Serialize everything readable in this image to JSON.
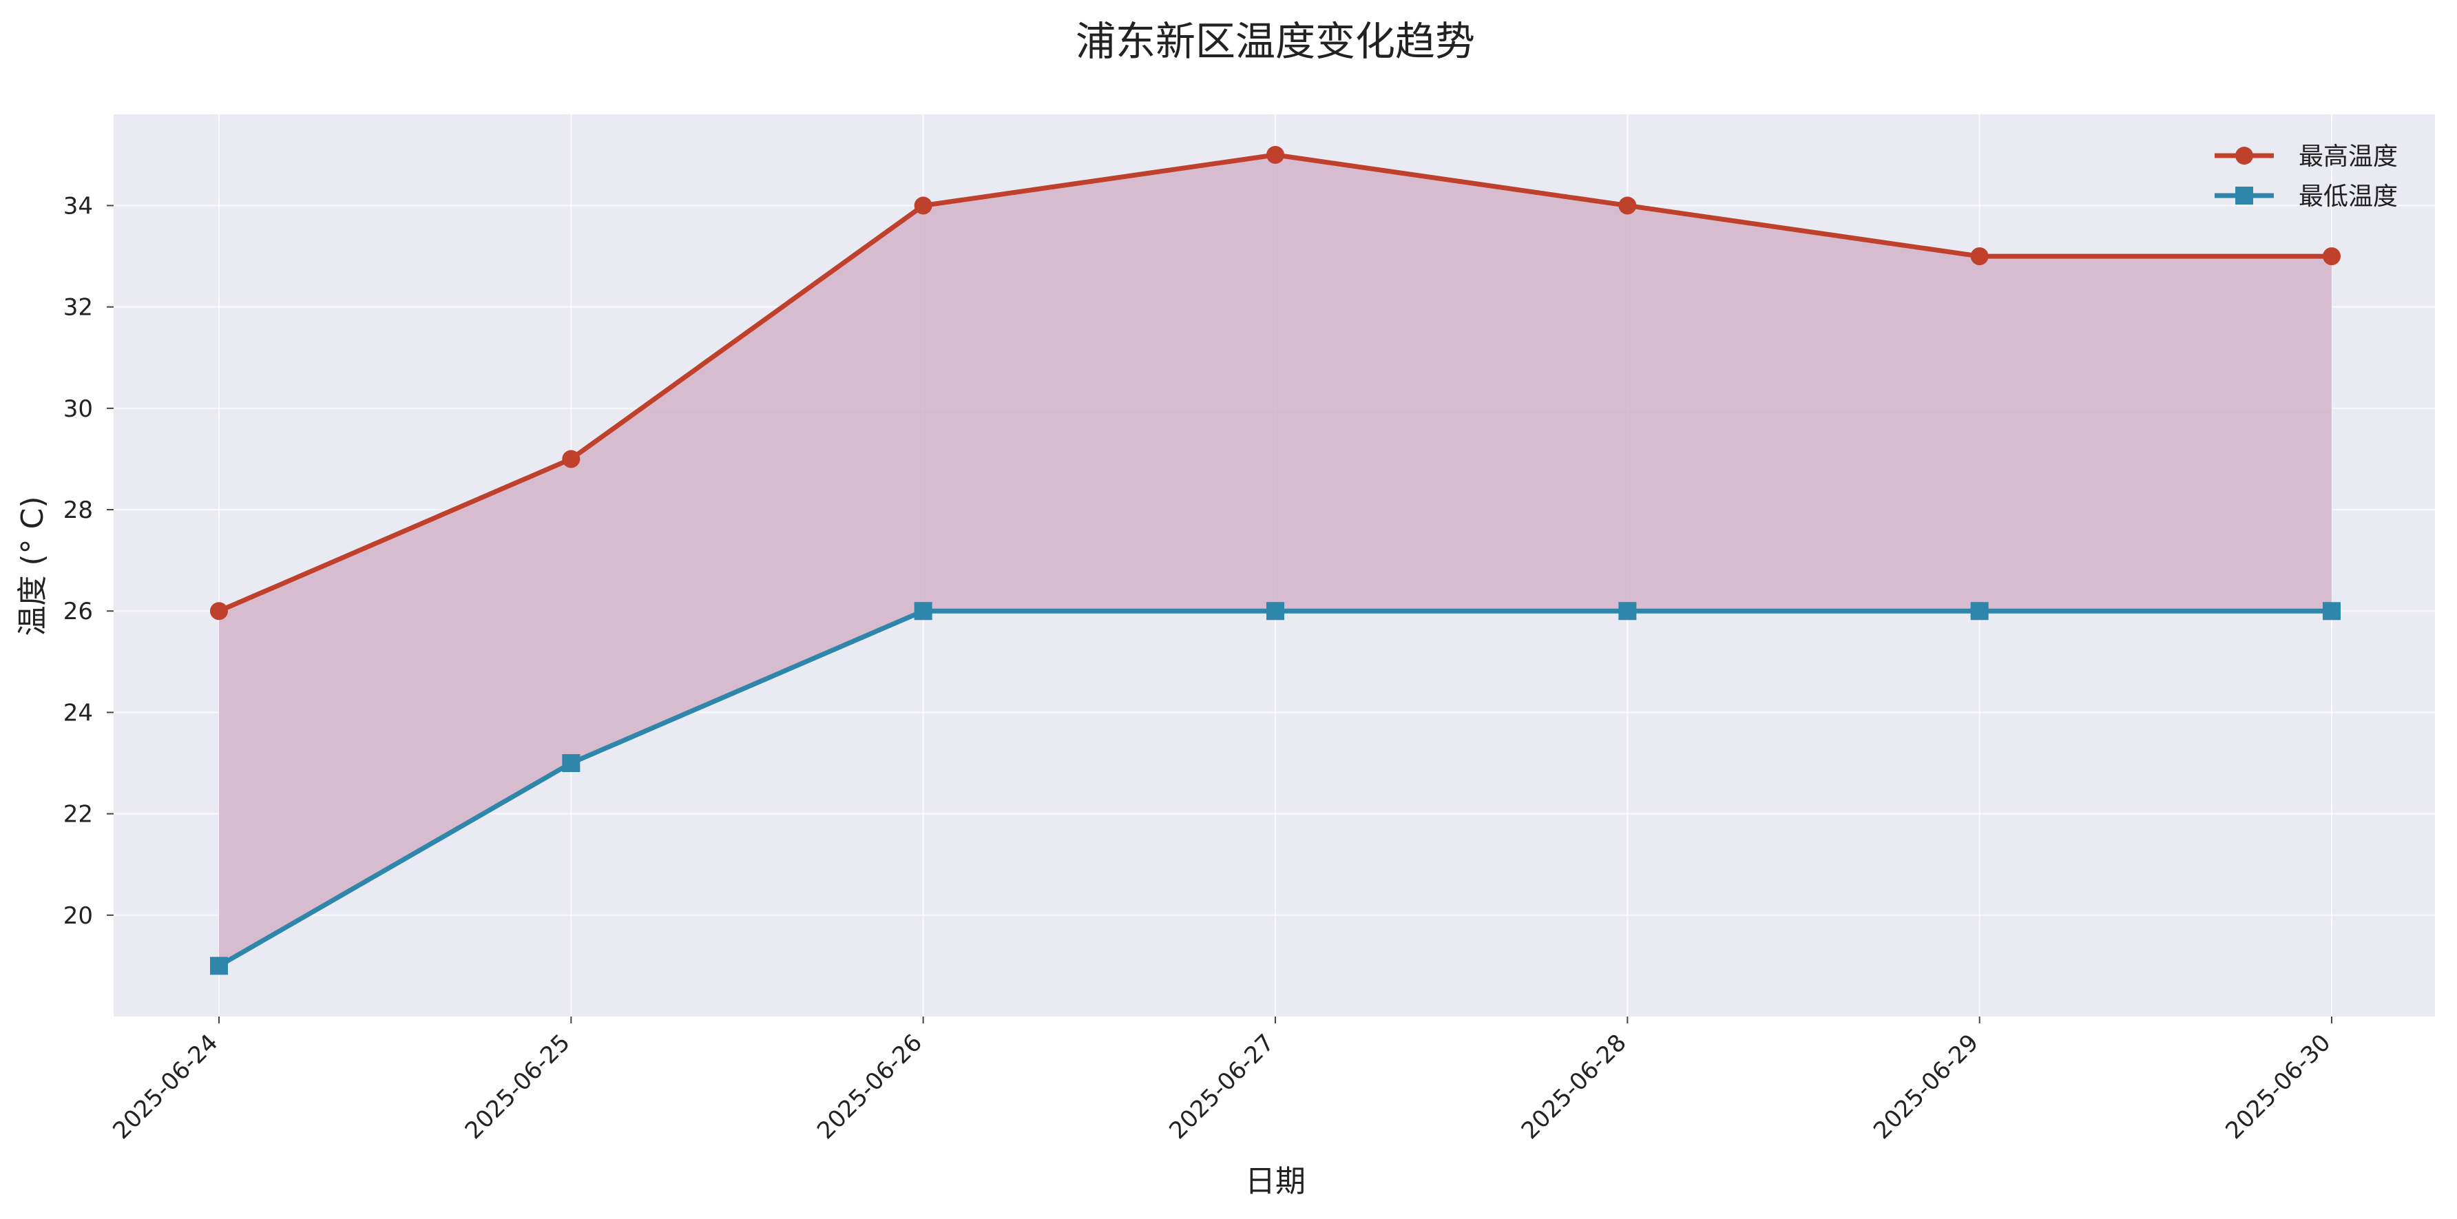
{
  "chart_data": {
    "type": "line",
    "title": "浦东新区温度变化趋势",
    "xlabel": "日期",
    "ylabel": "温度 (° C)",
    "categories": [
      "2025-06-24",
      "2025-06-25",
      "2025-06-26",
      "2025-06-27",
      "2025-06-28",
      "2025-06-29",
      "2025-06-30"
    ],
    "series": [
      {
        "name": "最高温度",
        "values": [
          26,
          29,
          34,
          35,
          34,
          33,
          33
        ],
        "color": "#c0412b",
        "marker": "circle"
      },
      {
        "name": "最低温度",
        "values": [
          19,
          23,
          26,
          26,
          26,
          26,
          26
        ],
        "color": "#2e86ab",
        "marker": "square"
      }
    ],
    "fill_between": {
      "color": "#d4b3c9"
    },
    "y_ticks": [
      20,
      22,
      24,
      26,
      28,
      30,
      32,
      34
    ],
    "ylim": [
      18,
      35.8
    ],
    "grid": true,
    "legend_position": "top-right",
    "background": "#eaeaf2"
  }
}
